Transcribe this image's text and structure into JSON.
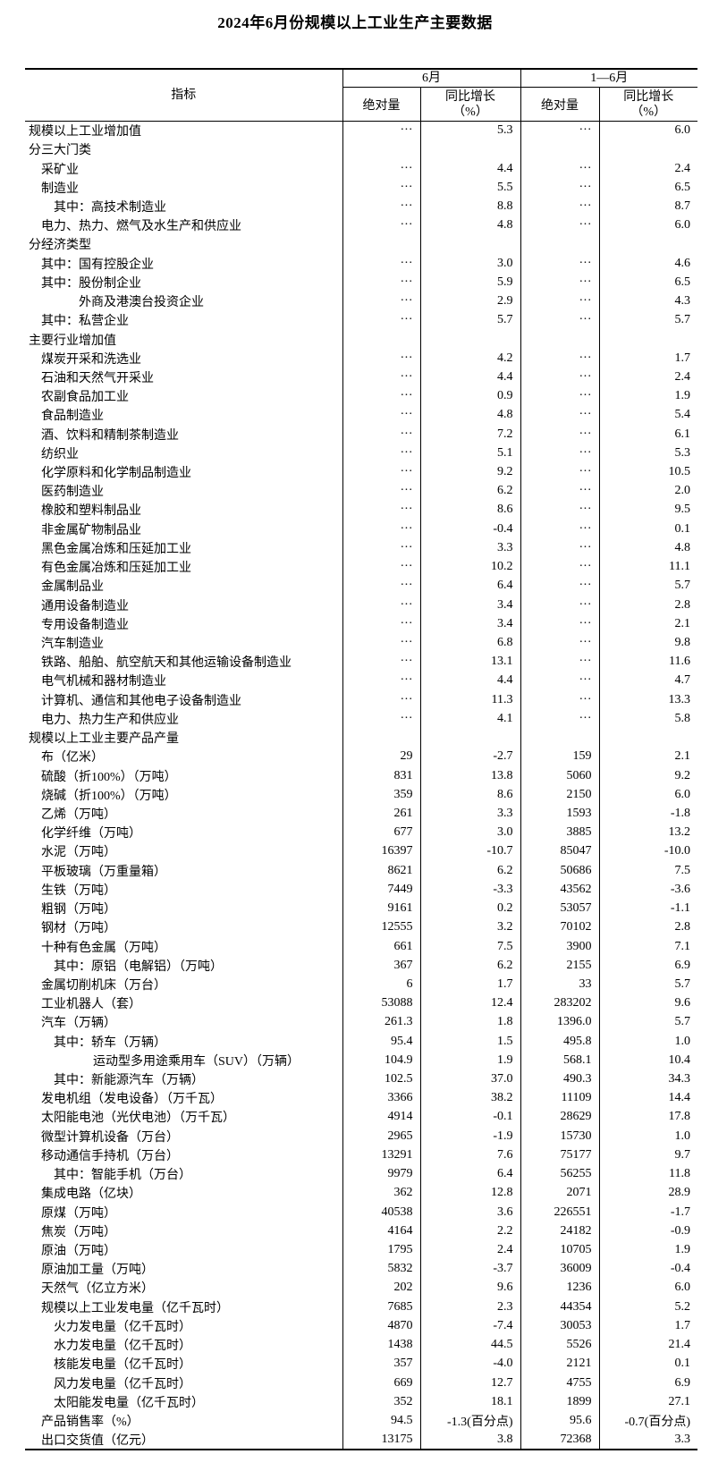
{
  "title": "2024年6月份规模以上工业生产主要数据",
  "table": {
    "header": {
      "indicator": "指标",
      "june": "6月",
      "jan_june": "1—6月",
      "absolute": "绝对量",
      "yoy": "同比增长",
      "yoy_unit": "（%）"
    },
    "rows": [
      {
        "label": "规模以上工业增加值",
        "indent": 0,
        "values": [
          "···",
          "5.3",
          "···",
          "6.0"
        ]
      },
      {
        "label": "分三大门类",
        "indent": 0,
        "values": [
          "",
          "",
          "",
          ""
        ]
      },
      {
        "label": "采矿业",
        "indent": 1,
        "values": [
          "···",
          "4.4",
          "···",
          "2.4"
        ]
      },
      {
        "label": "制造业",
        "indent": 1,
        "values": [
          "···",
          "5.5",
          "···",
          "6.5"
        ]
      },
      {
        "label": "其中：高技术制造业",
        "indent": 2,
        "values": [
          "···",
          "8.8",
          "···",
          "8.7"
        ]
      },
      {
        "label": "电力、热力、燃气及水生产和供应业",
        "indent": 1,
        "values": [
          "···",
          "4.8",
          "···",
          "6.0"
        ]
      },
      {
        "label": "分经济类型",
        "indent": 0,
        "values": [
          "",
          "",
          "",
          ""
        ]
      },
      {
        "label": "其中：国有控股企业",
        "indent": 1,
        "values": [
          "···",
          "3.0",
          "···",
          "4.6"
        ]
      },
      {
        "label": "其中：股份制企业",
        "indent": 1,
        "values": [
          "···",
          "5.9",
          "···",
          "6.5"
        ]
      },
      {
        "label": "外商及港澳台投资企业",
        "indent": 3,
        "values": [
          "···",
          "2.9",
          "···",
          "4.3"
        ]
      },
      {
        "label": "其中：私营企业",
        "indent": 1,
        "values": [
          "···",
          "5.7",
          "···",
          "5.7"
        ]
      },
      {
        "label": "主要行业增加值",
        "indent": 0,
        "values": [
          "",
          "",
          "",
          ""
        ]
      },
      {
        "label": "煤炭开采和洗选业",
        "indent": 1,
        "values": [
          "···",
          "4.2",
          "···",
          "1.7"
        ]
      },
      {
        "label": "石油和天然气开采业",
        "indent": 1,
        "values": [
          "···",
          "4.4",
          "···",
          "2.4"
        ]
      },
      {
        "label": "农副食品加工业",
        "indent": 1,
        "values": [
          "···",
          "0.9",
          "···",
          "1.9"
        ]
      },
      {
        "label": "食品制造业",
        "indent": 1,
        "values": [
          "···",
          "4.8",
          "···",
          "5.4"
        ]
      },
      {
        "label": "酒、饮料和精制茶制造业",
        "indent": 1,
        "values": [
          "···",
          "7.2",
          "···",
          "6.1"
        ]
      },
      {
        "label": "纺织业",
        "indent": 1,
        "values": [
          "···",
          "5.1",
          "···",
          "5.3"
        ]
      },
      {
        "label": "化学原料和化学制品制造业",
        "indent": 1,
        "values": [
          "···",
          "9.2",
          "···",
          "10.5"
        ]
      },
      {
        "label": "医药制造业",
        "indent": 1,
        "values": [
          "···",
          "6.2",
          "···",
          "2.0"
        ]
      },
      {
        "label": "橡胶和塑料制品业",
        "indent": 1,
        "values": [
          "···",
          "8.6",
          "···",
          "9.5"
        ]
      },
      {
        "label": "非金属矿物制品业",
        "indent": 1,
        "values": [
          "···",
          "-0.4",
          "···",
          "0.1"
        ]
      },
      {
        "label": "黑色金属冶炼和压延加工业",
        "indent": 1,
        "values": [
          "···",
          "3.3",
          "···",
          "4.8"
        ]
      },
      {
        "label": "有色金属冶炼和压延加工业",
        "indent": 1,
        "values": [
          "···",
          "10.2",
          "···",
          "11.1"
        ]
      },
      {
        "label": "金属制品业",
        "indent": 1,
        "values": [
          "···",
          "6.4",
          "···",
          "5.7"
        ]
      },
      {
        "label": "通用设备制造业",
        "indent": 1,
        "values": [
          "···",
          "3.4",
          "···",
          "2.8"
        ]
      },
      {
        "label": "专用设备制造业",
        "indent": 1,
        "values": [
          "···",
          "3.4",
          "···",
          "2.1"
        ]
      },
      {
        "label": "汽车制造业",
        "indent": 1,
        "values": [
          "···",
          "6.8",
          "···",
          "9.8"
        ]
      },
      {
        "label": "铁路、船舶、航空航天和其他运输设备制造业",
        "indent": 1,
        "values": [
          "···",
          "13.1",
          "···",
          "11.6"
        ]
      },
      {
        "label": "电气机械和器材制造业",
        "indent": 1,
        "values": [
          "···",
          "4.4",
          "···",
          "4.7"
        ]
      },
      {
        "label": "计算机、通信和其他电子设备制造业",
        "indent": 1,
        "values": [
          "···",
          "11.3",
          "···",
          "13.3"
        ]
      },
      {
        "label": "电力、热力生产和供应业",
        "indent": 1,
        "values": [
          "···",
          "4.1",
          "···",
          "5.8"
        ]
      },
      {
        "label": "规模以上工业主要产品产量",
        "indent": 0,
        "values": [
          "",
          "",
          "",
          ""
        ]
      },
      {
        "label": "布（亿米）",
        "indent": 1,
        "values": [
          "29",
          "-2.7",
          "159",
          "2.1"
        ]
      },
      {
        "label": "硫酸（折100%）（万吨）",
        "indent": 1,
        "values": [
          "831",
          "13.8",
          "5060",
          "9.2"
        ]
      },
      {
        "label": "烧碱（折100%）（万吨）",
        "indent": 1,
        "values": [
          "359",
          "8.6",
          "2150",
          "6.0"
        ]
      },
      {
        "label": "乙烯（万吨）",
        "indent": 1,
        "values": [
          "261",
          "3.3",
          "1593",
          "-1.8"
        ]
      },
      {
        "label": "化学纤维（万吨）",
        "indent": 1,
        "values": [
          "677",
          "3.0",
          "3885",
          "13.2"
        ]
      },
      {
        "label": "水泥（万吨）",
        "indent": 1,
        "values": [
          "16397",
          "-10.7",
          "85047",
          "-10.0"
        ]
      },
      {
        "label": "平板玻璃（万重量箱）",
        "indent": 1,
        "values": [
          "8621",
          "6.2",
          "50686",
          "7.5"
        ]
      },
      {
        "label": "生铁（万吨）",
        "indent": 1,
        "values": [
          "7449",
          "-3.3",
          "43562",
          "-3.6"
        ]
      },
      {
        "label": "粗钢（万吨）",
        "indent": 1,
        "values": [
          "9161",
          "0.2",
          "53057",
          "-1.1"
        ]
      },
      {
        "label": "钢材（万吨）",
        "indent": 1,
        "values": [
          "12555",
          "3.2",
          "70102",
          "2.8"
        ]
      },
      {
        "label": "十种有色金属（万吨）",
        "indent": 1,
        "values": [
          "661",
          "7.5",
          "3900",
          "7.1"
        ]
      },
      {
        "label": "其中：原铝（电解铝）（万吨）",
        "indent": 2,
        "values": [
          "367",
          "6.2",
          "2155",
          "6.9"
        ]
      },
      {
        "label": "金属切削机床（万台）",
        "indent": 1,
        "values": [
          "6",
          "1.7",
          "33",
          "5.7"
        ]
      },
      {
        "label": "工业机器人（套）",
        "indent": 1,
        "values": [
          "53088",
          "12.4",
          "283202",
          "9.6"
        ]
      },
      {
        "label": "汽车（万辆）",
        "indent": 1,
        "values": [
          "261.3",
          "1.8",
          "1396.0",
          "5.7"
        ]
      },
      {
        "label": "其中：轿车（万辆）",
        "indent": 2,
        "values": [
          "95.4",
          "1.5",
          "495.8",
          "1.0"
        ]
      },
      {
        "label": "运动型多用途乘用车（SUV）（万辆）",
        "indent": 4,
        "values": [
          "104.9",
          "1.9",
          "568.1",
          "10.4"
        ]
      },
      {
        "label": "其中：新能源汽车（万辆）",
        "indent": 2,
        "values": [
          "102.5",
          "37.0",
          "490.3",
          "34.3"
        ]
      },
      {
        "label": "发电机组（发电设备）（万千瓦）",
        "indent": 1,
        "values": [
          "3366",
          "38.2",
          "11109",
          "14.4"
        ]
      },
      {
        "label": "太阳能电池（光伏电池）（万千瓦）",
        "indent": 1,
        "values": [
          "4914",
          "-0.1",
          "28629",
          "17.8"
        ]
      },
      {
        "label": "微型计算机设备（万台）",
        "indent": 1,
        "values": [
          "2965",
          "-1.9",
          "15730",
          "1.0"
        ]
      },
      {
        "label": "移动通信手持机（万台）",
        "indent": 1,
        "values": [
          "13291",
          "7.6",
          "75177",
          "9.7"
        ]
      },
      {
        "label": "其中：智能手机（万台）",
        "indent": 2,
        "values": [
          "9979",
          "6.4",
          "56255",
          "11.8"
        ]
      },
      {
        "label": "集成电路（亿块）",
        "indent": 1,
        "values": [
          "362",
          "12.8",
          "2071",
          "28.9"
        ]
      },
      {
        "label": "原煤（万吨）",
        "indent": 1,
        "values": [
          "40538",
          "3.6",
          "226551",
          "-1.7"
        ]
      },
      {
        "label": "焦炭（万吨）",
        "indent": 1,
        "values": [
          "4164",
          "2.2",
          "24182",
          "-0.9"
        ]
      },
      {
        "label": "原油（万吨）",
        "indent": 1,
        "values": [
          "1795",
          "2.4",
          "10705",
          "1.9"
        ]
      },
      {
        "label": "原油加工量（万吨）",
        "indent": 1,
        "values": [
          "5832",
          "-3.7",
          "36009",
          "-0.4"
        ]
      },
      {
        "label": "天然气（亿立方米）",
        "indent": 1,
        "values": [
          "202",
          "9.6",
          "1236",
          "6.0"
        ]
      },
      {
        "label": "规模以上工业发电量（亿千瓦时）",
        "indent": 1,
        "values": [
          "7685",
          "2.3",
          "44354",
          "5.2"
        ]
      },
      {
        "label": "火力发电量（亿千瓦时）",
        "indent": 2,
        "values": [
          "4870",
          "-7.4",
          "30053",
          "1.7"
        ]
      },
      {
        "label": "水力发电量（亿千瓦时）",
        "indent": 2,
        "values": [
          "1438",
          "44.5",
          "5526",
          "21.4"
        ]
      },
      {
        "label": "核能发电量（亿千瓦时）",
        "indent": 2,
        "values": [
          "357",
          "-4.0",
          "2121",
          "0.1"
        ]
      },
      {
        "label": "风力发电量（亿千瓦时）",
        "indent": 2,
        "values": [
          "669",
          "12.7",
          "4755",
          "6.9"
        ]
      },
      {
        "label": "太阳能发电量（亿千瓦时）",
        "indent": 2,
        "values": [
          "352",
          "18.1",
          "1899",
          "27.1"
        ]
      },
      {
        "label": "产品销售率（%）",
        "indent": 1,
        "values": [
          "94.5",
          "-1.3(百分点)",
          "95.6",
          "-0.7(百分点)"
        ]
      },
      {
        "label": "出口交货值（亿元）",
        "indent": 1,
        "values": [
          "13175",
          "3.8",
          "72368",
          "3.3"
        ]
      }
    ]
  }
}
